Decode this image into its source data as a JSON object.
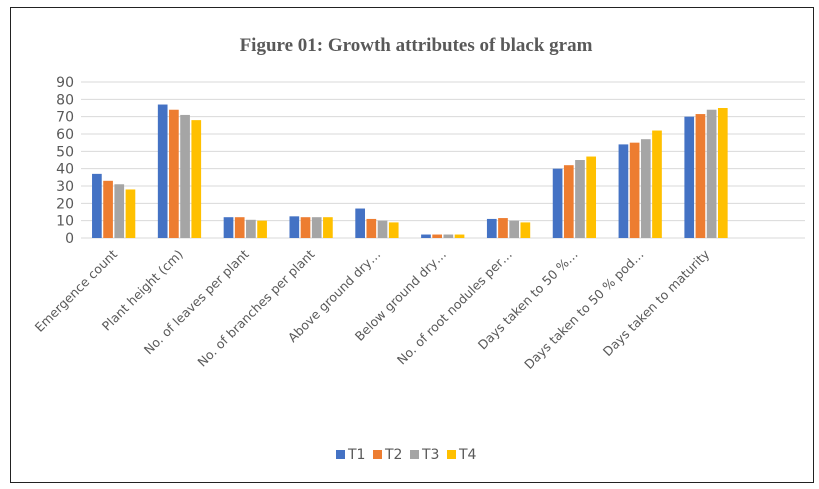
{
  "chart_data": {
    "type": "bar",
    "title": "Figure 01: Growth attributes of black gram",
    "xlabel": "",
    "ylabel": "",
    "ylim": [
      0,
      90
    ],
    "yticks": [
      0,
      10,
      20,
      30,
      40,
      50,
      60,
      70,
      80,
      90
    ],
    "grid": true,
    "legend_position": "bottom",
    "categories": [
      "Emergence count",
      "Plant height (cm)",
      "No. of leaves per plant",
      "No. of branches per plant",
      "Above ground dry…",
      "Below ground dry…",
      "No. of root nodules per…",
      "Days taken to 50 %…",
      "Days taken to 50 % pod…",
      "Days taken to maturity",
      ""
    ],
    "series": [
      {
        "name": "T1",
        "color": "#4472C4",
        "values": [
          37,
          77,
          12,
          12.5,
          17,
          2,
          11,
          40,
          54,
          70,
          null
        ]
      },
      {
        "name": "T2",
        "color": "#ED7D31",
        "values": [
          33,
          74,
          12,
          12,
          11,
          2,
          11.5,
          42,
          55,
          71.5,
          null
        ]
      },
      {
        "name": "T3",
        "color": "#A5A5A5",
        "values": [
          31,
          71,
          10.5,
          12,
          10,
          2,
          10,
          45,
          57,
          74,
          null
        ]
      },
      {
        "name": "T4",
        "color": "#FFC000",
        "values": [
          28,
          68,
          10,
          12,
          9,
          2,
          9,
          47,
          62,
          75,
          null
        ]
      }
    ]
  }
}
